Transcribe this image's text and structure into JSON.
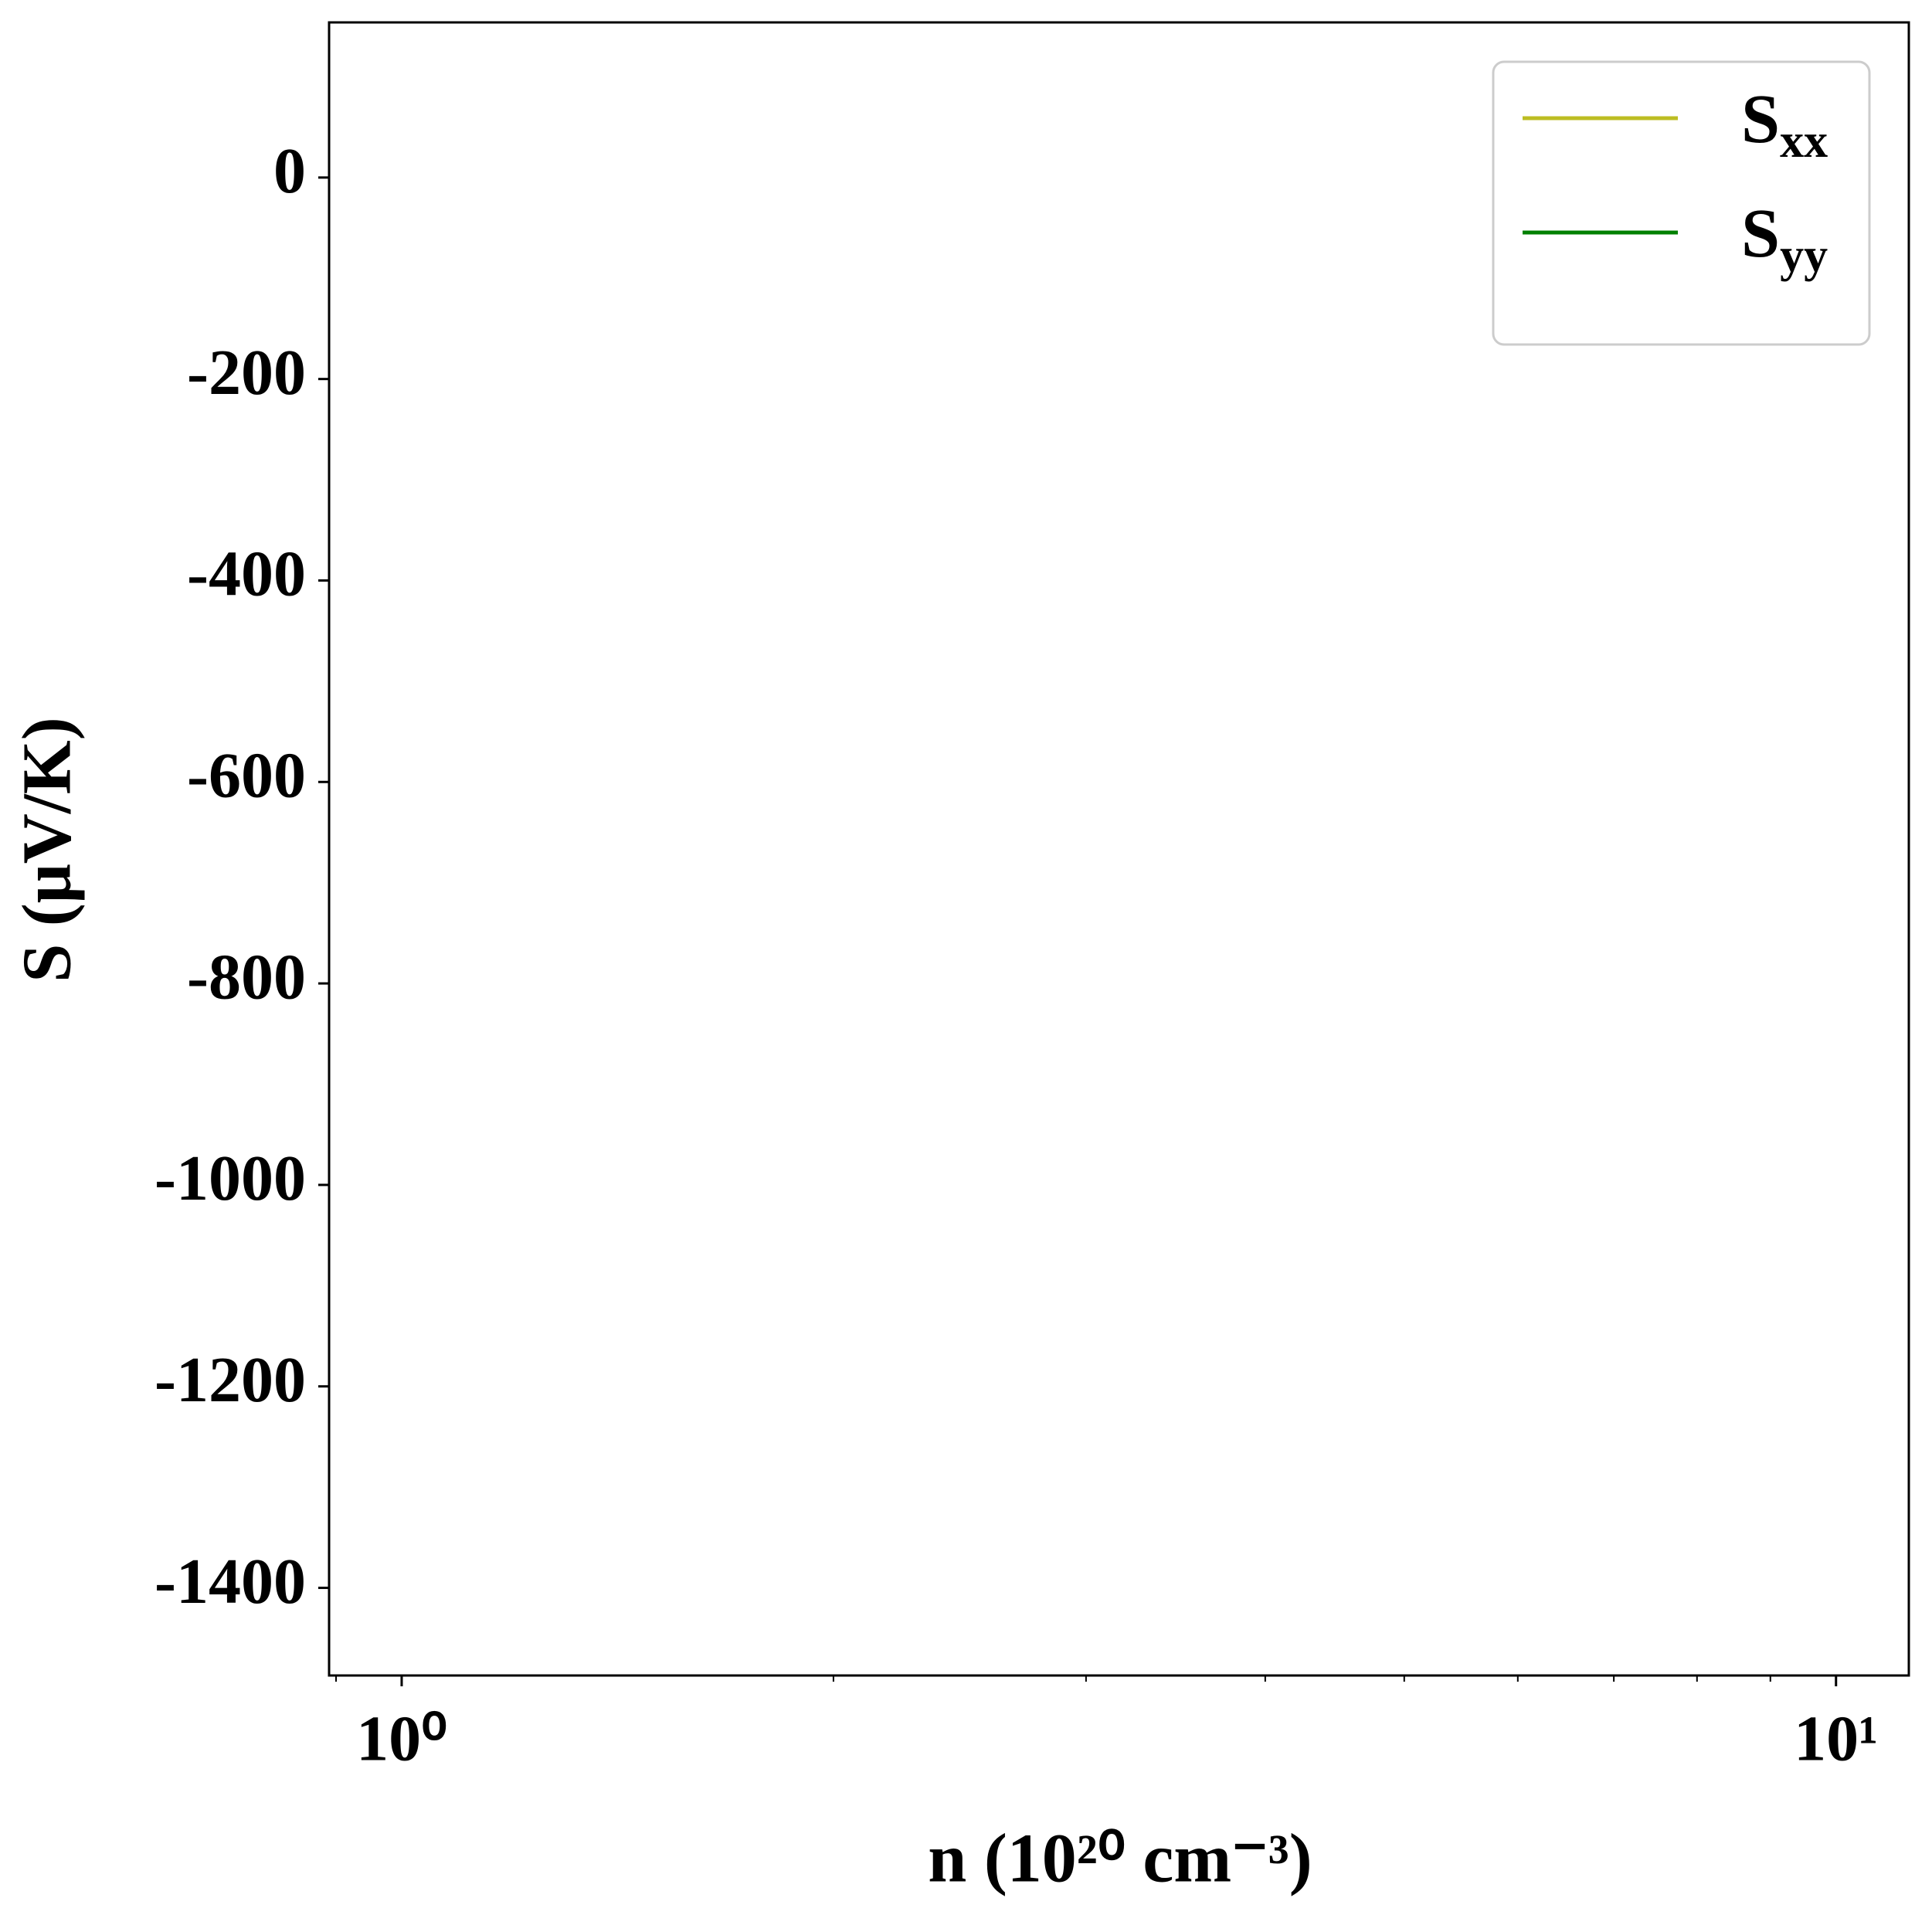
{
  "chart_data": {
    "type": "line",
    "x": [],
    "series": [
      {
        "name": "Sxx",
        "color": "#bcbd22",
        "values": []
      },
      {
        "name": "Syy",
        "color": "#008000",
        "values": []
      }
    ],
    "xlabel": "n (10²⁰ cm⁻³)",
    "ylabel": "S (μV/K)",
    "xscale": "log",
    "xlim": [
      0.89,
      11.24
    ],
    "xticks": [
      {
        "value": 1,
        "label": "10⁰"
      },
      {
        "value": 10,
        "label": "10¹"
      }
    ],
    "xminorticks": [
      0.9,
      2,
      3,
      4,
      5,
      6,
      7,
      8,
      9
    ],
    "ylim": [
      -1487,
      154
    ],
    "yticks": [
      0,
      -200,
      -400,
      -600,
      -800,
      -1000,
      -1200,
      -1400
    ],
    "legend": "upper right",
    "grid": false
  }
}
